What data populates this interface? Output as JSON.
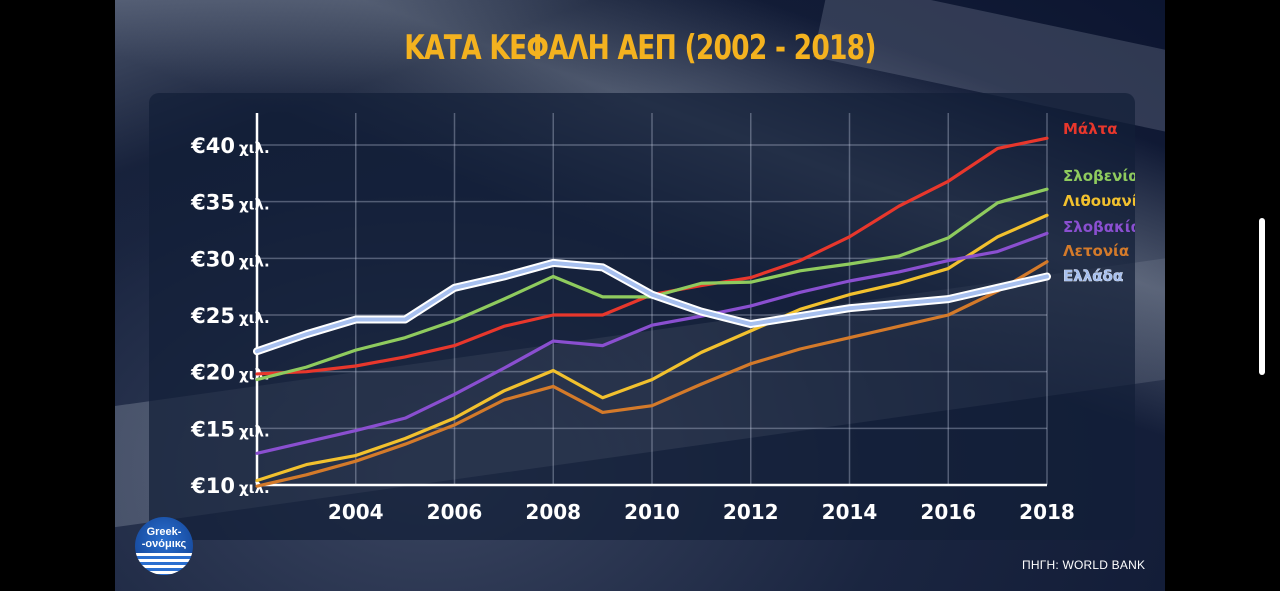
{
  "title": "ΚΑΤΑ ΚΕΦΑΛΗ ΑΕΠ (2002 - 2018)",
  "source": "ΠΗΓΗ: WORLD BANK",
  "logo": {
    "line1": "Greek-",
    "line2": "-ονόμικς"
  },
  "chart_data": {
    "type": "line",
    "title": "ΚΑΤΑ ΚΕΦΑΛΗ ΑΕΠ (2002 - 2018)",
    "xlabel": "",
    "ylabel": "",
    "x": [
      2002,
      2003,
      2004,
      2005,
      2006,
      2007,
      2008,
      2009,
      2010,
      2011,
      2012,
      2013,
      2014,
      2015,
      2016,
      2017,
      2018
    ],
    "xlim": [
      2002,
      2018
    ],
    "ylim": [
      10,
      42
    ],
    "x_ticks": [
      "2004",
      "2006",
      "2008",
      "2010",
      "2012",
      "2014",
      "2016",
      "2018"
    ],
    "y_ticks": [
      {
        "value": 10,
        "label": "€10",
        "unit": "χιλ."
      },
      {
        "value": 15,
        "label": "€15",
        "unit": "χιλ."
      },
      {
        "value": 20,
        "label": "€20",
        "unit": "χιλ."
      },
      {
        "value": 25,
        "label": "€25",
        "unit": "χιλ."
      },
      {
        "value": 30,
        "label": "€30",
        "unit": "χιλ."
      },
      {
        "value": 35,
        "label": "€35",
        "unit": "χιλ."
      },
      {
        "value": 40,
        "label": "€40",
        "unit": "χιλ."
      }
    ],
    "grid": true,
    "legend": "right (end-of-line labels)",
    "series": [
      {
        "name": "Μάλτα",
        "color": "#e8372c",
        "values": [
          19.8,
          20.0,
          20.5,
          21.3,
          22.3,
          24.0,
          25.0,
          25.0,
          26.8,
          27.6,
          28.3,
          29.8,
          31.9,
          34.6,
          36.8,
          39.7,
          40.6
        ]
      },
      {
        "name": "Σλοβενία",
        "color": "#8fcb5e",
        "values": [
          19.3,
          20.4,
          21.9,
          23.0,
          24.5,
          26.4,
          28.4,
          26.6,
          26.6,
          27.8,
          27.9,
          28.9,
          29.5,
          30.2,
          31.8,
          34.9,
          36.1
        ]
      },
      {
        "name": "Λιθουανία",
        "color": "#f2c12e",
        "values": [
          10.4,
          11.8,
          12.6,
          14.1,
          15.9,
          18.3,
          20.1,
          17.7,
          19.3,
          21.7,
          23.6,
          25.5,
          26.8,
          27.8,
          29.1,
          31.9,
          33.8
        ]
      },
      {
        "name": "Σλοβακία",
        "color": "#8a4fd0",
        "values": [
          12.8,
          13.8,
          14.8,
          15.9,
          18.0,
          20.3,
          22.7,
          22.3,
          24.1,
          24.9,
          25.8,
          27.0,
          28.0,
          28.8,
          29.8,
          30.6,
          32.2
        ]
      },
      {
        "name": "Λετονία",
        "color": "#d47a2a",
        "values": [
          9.9,
          10.9,
          12.1,
          13.6,
          15.3,
          17.5,
          18.7,
          16.4,
          17.0,
          18.9,
          20.7,
          22.0,
          23.0,
          24.0,
          25.0,
          27.1,
          29.7
        ]
      },
      {
        "name": "Ελλάδα",
        "color": "#a7c0ef",
        "values": [
          21.8,
          23.3,
          24.6,
          24.6,
          27.4,
          28.4,
          29.6,
          29.2,
          26.8,
          25.3,
          24.2,
          24.9,
          25.6,
          26.0,
          26.4,
          27.4,
          28.4
        ]
      }
    ]
  }
}
